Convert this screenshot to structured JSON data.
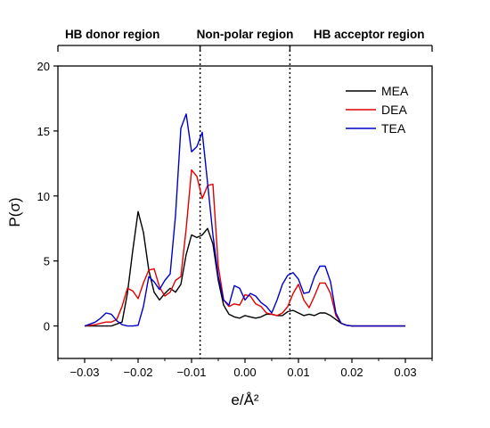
{
  "chart_data": {
    "type": "line",
    "xlabel": "e/Å²",
    "ylabel": "P(σ)",
    "xlim": [
      -0.035,
      0.035
    ],
    "ylim": [
      -2.5,
      20
    ],
    "xticks": [
      -0.03,
      -0.02,
      -0.01,
      0.0,
      0.01,
      0.02,
      0.03
    ],
    "xtick_labels": [
      "-0.03",
      "-0.02",
      "-0.01",
      "0.00",
      "0.01",
      "0.02",
      "0.03"
    ],
    "yticks": [
      0,
      5,
      10,
      15,
      20
    ],
    "ytick_labels": [
      "0",
      "5",
      "10",
      "15",
      "20"
    ],
    "grid": false,
    "legend_position": "top-right",
    "region_boundaries": [
      -0.0084,
      0.0084
    ],
    "regions": [
      {
        "label": "HB donor region",
        "center": -0.0248
      },
      {
        "label": "Non-polar region",
        "center": 0.0
      },
      {
        "label": "HB acceptor region",
        "center": 0.0232
      }
    ],
    "series": [
      {
        "name": "MEA",
        "color": "#000000",
        "x": [
          -0.03,
          -0.025,
          -0.023,
          -0.022,
          -0.021,
          -0.02,
          -0.019,
          -0.018,
          -0.017,
          -0.016,
          -0.015,
          -0.014,
          -0.013,
          -0.012,
          -0.011,
          -0.01,
          -0.009,
          -0.008,
          -0.007,
          -0.006,
          -0.005,
          -0.004,
          -0.003,
          -0.002,
          -0.001,
          0.0,
          0.001,
          0.002,
          0.003,
          0.004,
          0.005,
          0.006,
          0.007,
          0.008,
          0.009,
          0.01,
          0.011,
          0.012,
          0.013,
          0.014,
          0.015,
          0.016,
          0.017,
          0.018,
          0.019,
          0.02,
          0.025,
          0.03
        ],
        "values": [
          0,
          0,
          0.3,
          2.5,
          5.8,
          8.8,
          7.2,
          4.3,
          2.6,
          2.0,
          2.5,
          2.9,
          2.6,
          3.2,
          5.5,
          7.0,
          6.8,
          7.0,
          7.5,
          6.3,
          3.5,
          1.6,
          0.9,
          0.7,
          0.6,
          0.8,
          0.7,
          0.6,
          0.7,
          0.9,
          0.9,
          0.8,
          0.8,
          1.1,
          1.2,
          1.0,
          0.8,
          0.9,
          0.8,
          1.0,
          1.0,
          0.8,
          0.5,
          0.2,
          0.05,
          0,
          0,
          0
        ]
      },
      {
        "name": "DEA",
        "color": "#e00000",
        "x": [
          -0.03,
          -0.028,
          -0.027,
          -0.026,
          -0.025,
          -0.024,
          -0.023,
          -0.022,
          -0.021,
          -0.02,
          -0.019,
          -0.018,
          -0.017,
          -0.016,
          -0.015,
          -0.014,
          -0.013,
          -0.012,
          -0.011,
          -0.01,
          -0.009,
          -0.008,
          -0.007,
          -0.006,
          -0.005,
          -0.004,
          -0.003,
          -0.002,
          -0.001,
          0.0,
          0.001,
          0.002,
          0.003,
          0.004,
          0.005,
          0.006,
          0.007,
          0.008,
          0.009,
          0.01,
          0.011,
          0.012,
          0.013,
          0.014,
          0.015,
          0.016,
          0.017,
          0.018,
          0.019,
          0.02,
          0.025,
          0.03
        ],
        "values": [
          0,
          0.1,
          0.2,
          0.3,
          0.3,
          0.5,
          1.5,
          2.9,
          2.7,
          2.1,
          3.3,
          4.3,
          4.4,
          3.0,
          2.3,
          2.6,
          3.5,
          3.8,
          7.5,
          12.0,
          11.5,
          9.8,
          10.8,
          10.9,
          4.6,
          2.0,
          1.5,
          1.7,
          1.6,
          2.4,
          2.3,
          1.7,
          1.5,
          1.0,
          0.9,
          0.8,
          1.0,
          1.5,
          2.5,
          3.2,
          2.0,
          1.4,
          2.3,
          3.3,
          3.3,
          2.5,
          0.8,
          0.2,
          0.05,
          0,
          0,
          0
        ]
      },
      {
        "name": "TEA",
        "color": "#0000cc",
        "x": [
          -0.03,
          -0.028,
          -0.027,
          -0.026,
          -0.025,
          -0.024,
          -0.023,
          -0.022,
          -0.021,
          -0.02,
          -0.019,
          -0.018,
          -0.017,
          -0.016,
          -0.015,
          -0.014,
          -0.013,
          -0.012,
          -0.011,
          -0.01,
          -0.009,
          -0.008,
          -0.007,
          -0.006,
          -0.005,
          -0.004,
          -0.003,
          -0.002,
          -0.001,
          0.0,
          0.001,
          0.002,
          0.003,
          0.004,
          0.005,
          0.006,
          0.007,
          0.008,
          0.009,
          0.01,
          0.011,
          0.012,
          0.013,
          0.014,
          0.015,
          0.016,
          0.017,
          0.018,
          0.019,
          0.02,
          0.025,
          0.03
        ],
        "values": [
          0,
          0.3,
          0.6,
          1.0,
          0.9,
          0.4,
          0.1,
          0,
          0,
          0.05,
          1.5,
          3.8,
          3.4,
          2.8,
          3.5,
          4.0,
          8.5,
          15.2,
          16.3,
          13.4,
          13.8,
          14.9,
          11.0,
          7.0,
          3.8,
          2.0,
          1.6,
          3.1,
          2.9,
          2.0,
          2.5,
          2.3,
          1.8,
          1.5,
          1.0,
          2.0,
          3.2,
          3.9,
          4.1,
          3.6,
          2.5,
          2.6,
          3.8,
          4.6,
          4.6,
          3.4,
          1.0,
          0.2,
          0.05,
          0,
          0,
          0
        ]
      }
    ]
  }
}
